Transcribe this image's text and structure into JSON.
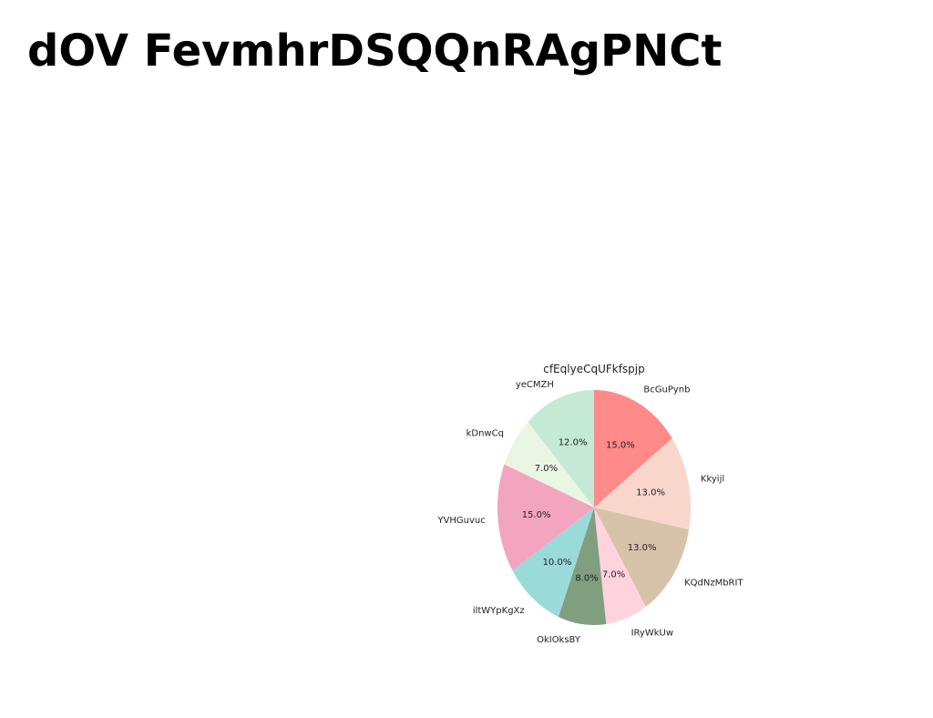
{
  "page": {
    "heading": "dOV FevmhrDSQQnRAgPNCt"
  },
  "chart_data": {
    "type": "pie",
    "title": "cfEqlyeCqUFkfspjp",
    "slices": [
      {
        "label": "BcGuPynb",
        "value": 15.0,
        "pct_label": "15.0%",
        "color": "#ff8a8a"
      },
      {
        "label": "Kkyijl",
        "value": 13.0,
        "pct_label": "13.0%",
        "color": "#f9d6cc"
      },
      {
        "label": "KQdNzMbRIT",
        "value": 13.0,
        "pct_label": "13.0%",
        "color": "#d7c3aa"
      },
      {
        "label": "IRyWkUw",
        "value": 7.0,
        "pct_label": "7.0%",
        "color": "#ffd3de"
      },
      {
        "label": "OkIOksBY",
        "value": 8.0,
        "pct_label": "8.0%",
        "color": "#819e80"
      },
      {
        "label": "iltWYpKgXz",
        "value": 10.0,
        "pct_label": "10.0%",
        "color": "#9adad8"
      },
      {
        "label": "YVHGuvuc",
        "value": 15.0,
        "pct_label": "15.0%",
        "color": "#f3a4bf"
      },
      {
        "label": "kDnwCq",
        "value": 7.0,
        "pct_label": "7.0%",
        "color": "#eaf6e4"
      },
      {
        "label": "yeCMZH",
        "value": 12.0,
        "pct_label": "12.0%",
        "color": "#c4ead5"
      }
    ],
    "start_angle_deg": 90,
    "direction": "clockwise"
  }
}
